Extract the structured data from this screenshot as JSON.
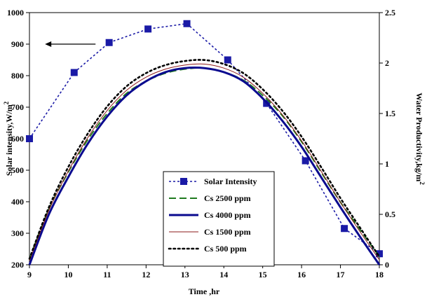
{
  "chart_data": {
    "type": "line",
    "xlabel": "Time ,hr",
    "ylabel_left": "Solar intensity,W/m",
    "ylabel_left_sup": "2",
    "ylabel_right": "Water Productivity,kg/m",
    "ylabel_right_sup": "2",
    "x_ticks": [
      "9",
      "10",
      "11",
      "12",
      "13",
      "14",
      "15",
      "16",
      "17",
      "18"
    ],
    "y_left_ticks": [
      "200",
      "300",
      "400",
      "500",
      "600",
      "700",
      "800",
      "900",
      "1000"
    ],
    "y_right_ticks": [
      "0",
      "0.5",
      "1",
      "1.5",
      "2",
      "2.5"
    ],
    "xlim": [
      9,
      18
    ],
    "ylim_left": [
      200,
      1000
    ],
    "ylim_right": [
      0,
      2.5
    ],
    "grid": false,
    "legend_position": "lower-center",
    "series": [
      {
        "name": "Solar Intensity",
        "axis": "left",
        "style": "dotted-marker",
        "color": "#1a1aa6",
        "x": [
          9,
          10.15,
          11.05,
          12.05,
          13.05,
          14.1,
          15.1,
          16.1,
          17.1,
          18
        ],
        "y": [
          600,
          810,
          905,
          948,
          965,
          850,
          712,
          530,
          315,
          235
        ]
      },
      {
        "name": "Cs 2500 ppm",
        "axis": "right",
        "style": "dashed",
        "color": "#1f7a1f",
        "x": [
          9,
          9.5,
          10,
          10.5,
          11,
          11.5,
          12,
          12.5,
          13,
          13.5,
          14,
          14.5,
          15,
          15.5,
          16,
          16.5,
          17,
          17.5,
          18
        ],
        "y": [
          0.06,
          0.55,
          0.92,
          1.24,
          1.5,
          1.7,
          1.82,
          1.9,
          1.94,
          1.95,
          1.91,
          1.83,
          1.68,
          1.48,
          1.22,
          0.92,
          0.62,
          0.35,
          0.08
        ]
      },
      {
        "name": "Cs 4000 ppm",
        "axis": "right",
        "style": "solid-thick",
        "color": "#0a0a8f",
        "x": [
          9,
          9.5,
          10,
          10.5,
          11,
          11.5,
          12,
          12.5,
          13,
          13.5,
          14,
          14.5,
          15,
          15.5,
          16,
          16.5,
          17,
          17.5,
          18
        ],
        "y": [
          0.0,
          0.5,
          0.87,
          1.2,
          1.47,
          1.68,
          1.82,
          1.91,
          1.95,
          1.95,
          1.91,
          1.82,
          1.65,
          1.43,
          1.17,
          0.87,
          0.57,
          0.28,
          0.0
        ]
      },
      {
        "name": "Cs 1500 ppm",
        "axis": "right",
        "style": "solid-thin",
        "color": "#8b1a1a",
        "x": [
          9,
          9.5,
          10,
          10.5,
          11,
          11.5,
          12,
          12.5,
          13,
          13.5,
          14,
          14.5,
          15,
          15.5,
          16,
          16.5,
          17,
          17.5,
          18
        ],
        "y": [
          0.04,
          0.54,
          0.93,
          1.26,
          1.53,
          1.73,
          1.86,
          1.94,
          1.98,
          1.99,
          1.95,
          1.86,
          1.7,
          1.49,
          1.23,
          0.93,
          0.62,
          0.33,
          0.05
        ]
      },
      {
        "name": "Cs 500 ppm",
        "axis": "right",
        "style": "dotted",
        "color": "#000000",
        "x": [
          9,
          9.5,
          10,
          10.5,
          11,
          11.5,
          12,
          12.5,
          13,
          13.5,
          14,
          14.5,
          15,
          15.5,
          16,
          16.5,
          17,
          17.5,
          18
        ],
        "y": [
          0.06,
          0.57,
          0.97,
          1.3,
          1.57,
          1.77,
          1.9,
          1.98,
          2.02,
          2.03,
          1.99,
          1.9,
          1.74,
          1.53,
          1.27,
          0.97,
          0.66,
          0.37,
          0.08
        ]
      }
    ],
    "annotations": [
      {
        "type": "arrow",
        "direction": "left",
        "points_to_axis": "left",
        "at_y": 900,
        "from_x": 10.7,
        "to_x": 9.4
      }
    ]
  }
}
